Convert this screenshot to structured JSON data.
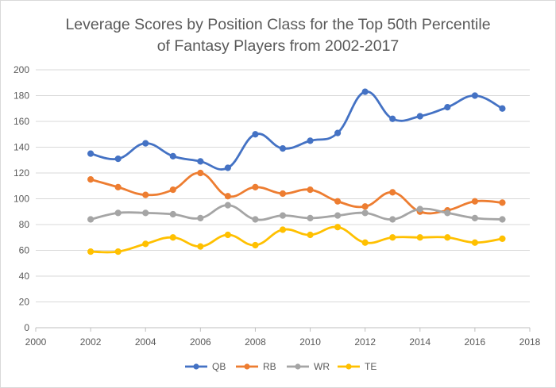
{
  "chart_data": {
    "type": "line",
    "title_line1": "Leverage Scores by Position Class for the Top 50th Percentile",
    "title_line2": "of Fantasy Players from 2002-2017",
    "xlabel": "",
    "ylabel": "",
    "xlim": [
      2000,
      2018
    ],
    "ylim": [
      0,
      200
    ],
    "x_ticks": [
      "2000",
      "2002",
      "2004",
      "2006",
      "2008",
      "2010",
      "2012",
      "2014",
      "2016",
      "2018"
    ],
    "y_ticks": [
      "0",
      "20",
      "40",
      "60",
      "80",
      "100",
      "120",
      "140",
      "160",
      "180",
      "200"
    ],
    "grid": "horizontal",
    "legend_position": "bottom",
    "smoothed": true,
    "x": [
      2002,
      2003,
      2004,
      2005,
      2006,
      2007,
      2008,
      2009,
      2010,
      2011,
      2012,
      2013,
      2014,
      2015,
      2016,
      2017
    ],
    "series": [
      {
        "name": "QB",
        "color": "#4472c4",
        "values": [
          135,
          131,
          143,
          133,
          129,
          124,
          150,
          139,
          145,
          151,
          183,
          162,
          164,
          171,
          180,
          170
        ]
      },
      {
        "name": "RB",
        "color": "#ed7d31",
        "values": [
          115,
          109,
          103,
          107,
          120,
          102,
          109,
          104,
          107,
          98,
          94,
          105,
          90,
          91,
          98,
          97
        ]
      },
      {
        "name": "WR",
        "color": "#a5a5a5",
        "values": [
          84,
          89,
          89,
          88,
          85,
          95,
          84,
          87,
          85,
          87,
          89,
          84,
          92,
          89,
          85,
          84
        ]
      },
      {
        "name": "TE",
        "color": "#ffc000",
        "values": [
          59,
          59,
          65,
          70,
          63,
          72,
          64,
          76,
          72,
          78,
          66,
          70,
          70,
          70,
          66,
          69
        ]
      }
    ]
  }
}
